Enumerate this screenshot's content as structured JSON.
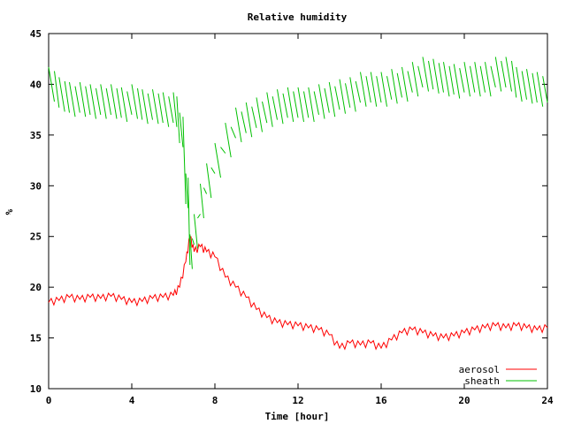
{
  "chart_data": {
    "type": "line",
    "title": "Relative humidity",
    "xlabel": "Time [hour]",
    "ylabel": "%",
    "xlim": [
      0,
      24
    ],
    "ylim": [
      10,
      45
    ],
    "xticks": [
      0,
      4,
      8,
      12,
      16,
      20,
      24
    ],
    "yticks": [
      10,
      15,
      20,
      25,
      30,
      35,
      40,
      45
    ],
    "grid": false,
    "legend_position": "bottom-right",
    "series": [
      {
        "name": "aerosol",
        "color": "#ff0000",
        "style": "line",
        "x": [
          0,
          0.5,
          1,
          1.5,
          2,
          2.5,
          3,
          3.5,
          4,
          4.5,
          5,
          5.5,
          6,
          6.3,
          6.6,
          6.8,
          7.0,
          7.3,
          7.6,
          8,
          8.5,
          9,
          9.5,
          10,
          10.5,
          11,
          11.5,
          12,
          12.5,
          13,
          13.5,
          14,
          14.5,
          15,
          15.5,
          16,
          16.5,
          17,
          17.5,
          18,
          18.5,
          19,
          19.5,
          20,
          20.5,
          21,
          21.5,
          22,
          22.5,
          23,
          23.5,
          24
        ],
        "y": [
          18.5,
          18.7,
          19.0,
          18.8,
          19.0,
          18.9,
          19.1,
          18.8,
          18.5,
          18.6,
          18.9,
          19.0,
          19.2,
          20.0,
          22.5,
          25.0,
          23.5,
          24.0,
          23.5,
          23.0,
          21.0,
          20.0,
          19.0,
          17.8,
          17.0,
          16.5,
          16.3,
          16.2,
          16.0,
          15.8,
          15.3,
          14.0,
          14.5,
          14.3,
          14.5,
          14.0,
          14.8,
          15.5,
          15.8,
          15.5,
          15.2,
          15.0,
          15.2,
          15.5,
          15.8,
          16.0,
          16.2,
          16.0,
          16.2,
          16.0,
          15.8,
          16.0
        ]
      },
      {
        "name": "sheath",
        "color": "#00c000",
        "style": "sawtooth",
        "x": [
          0,
          0.5,
          1,
          1.5,
          2,
          2.5,
          3,
          3.5,
          4,
          4.5,
          5,
          5.5,
          6,
          6.3,
          6.6,
          6.8,
          7.0,
          7.3,
          7.6,
          8,
          8.5,
          9,
          9.5,
          10,
          10.5,
          11,
          11.5,
          12,
          12.5,
          13,
          13.5,
          14,
          14.5,
          15,
          15.5,
          16,
          16.5,
          17,
          17.5,
          18,
          18.5,
          19,
          19.5,
          20,
          20.5,
          21,
          21.5,
          22,
          22.5,
          23,
          23.5,
          24
        ],
        "y": [
          40.5,
          39.5,
          39.0,
          39.0,
          38.8,
          38.8,
          38.8,
          38.5,
          38.8,
          38.3,
          38.3,
          38.0,
          38.0,
          36.0,
          30.0,
          24.0,
          26.0,
          29.0,
          31.0,
          33.0,
          35.0,
          36.5,
          37.0,
          37.5,
          38.0,
          38.3,
          38.5,
          38.5,
          38.5,
          38.8,
          39.0,
          39.3,
          39.5,
          40.0,
          40.0,
          40.0,
          40.3,
          40.5,
          41.0,
          41.5,
          41.3,
          41.0,
          40.8,
          41.0,
          41.0,
          41.0,
          41.5,
          41.5,
          40.5,
          40.3,
          40.0,
          40.0
        ]
      }
    ]
  }
}
